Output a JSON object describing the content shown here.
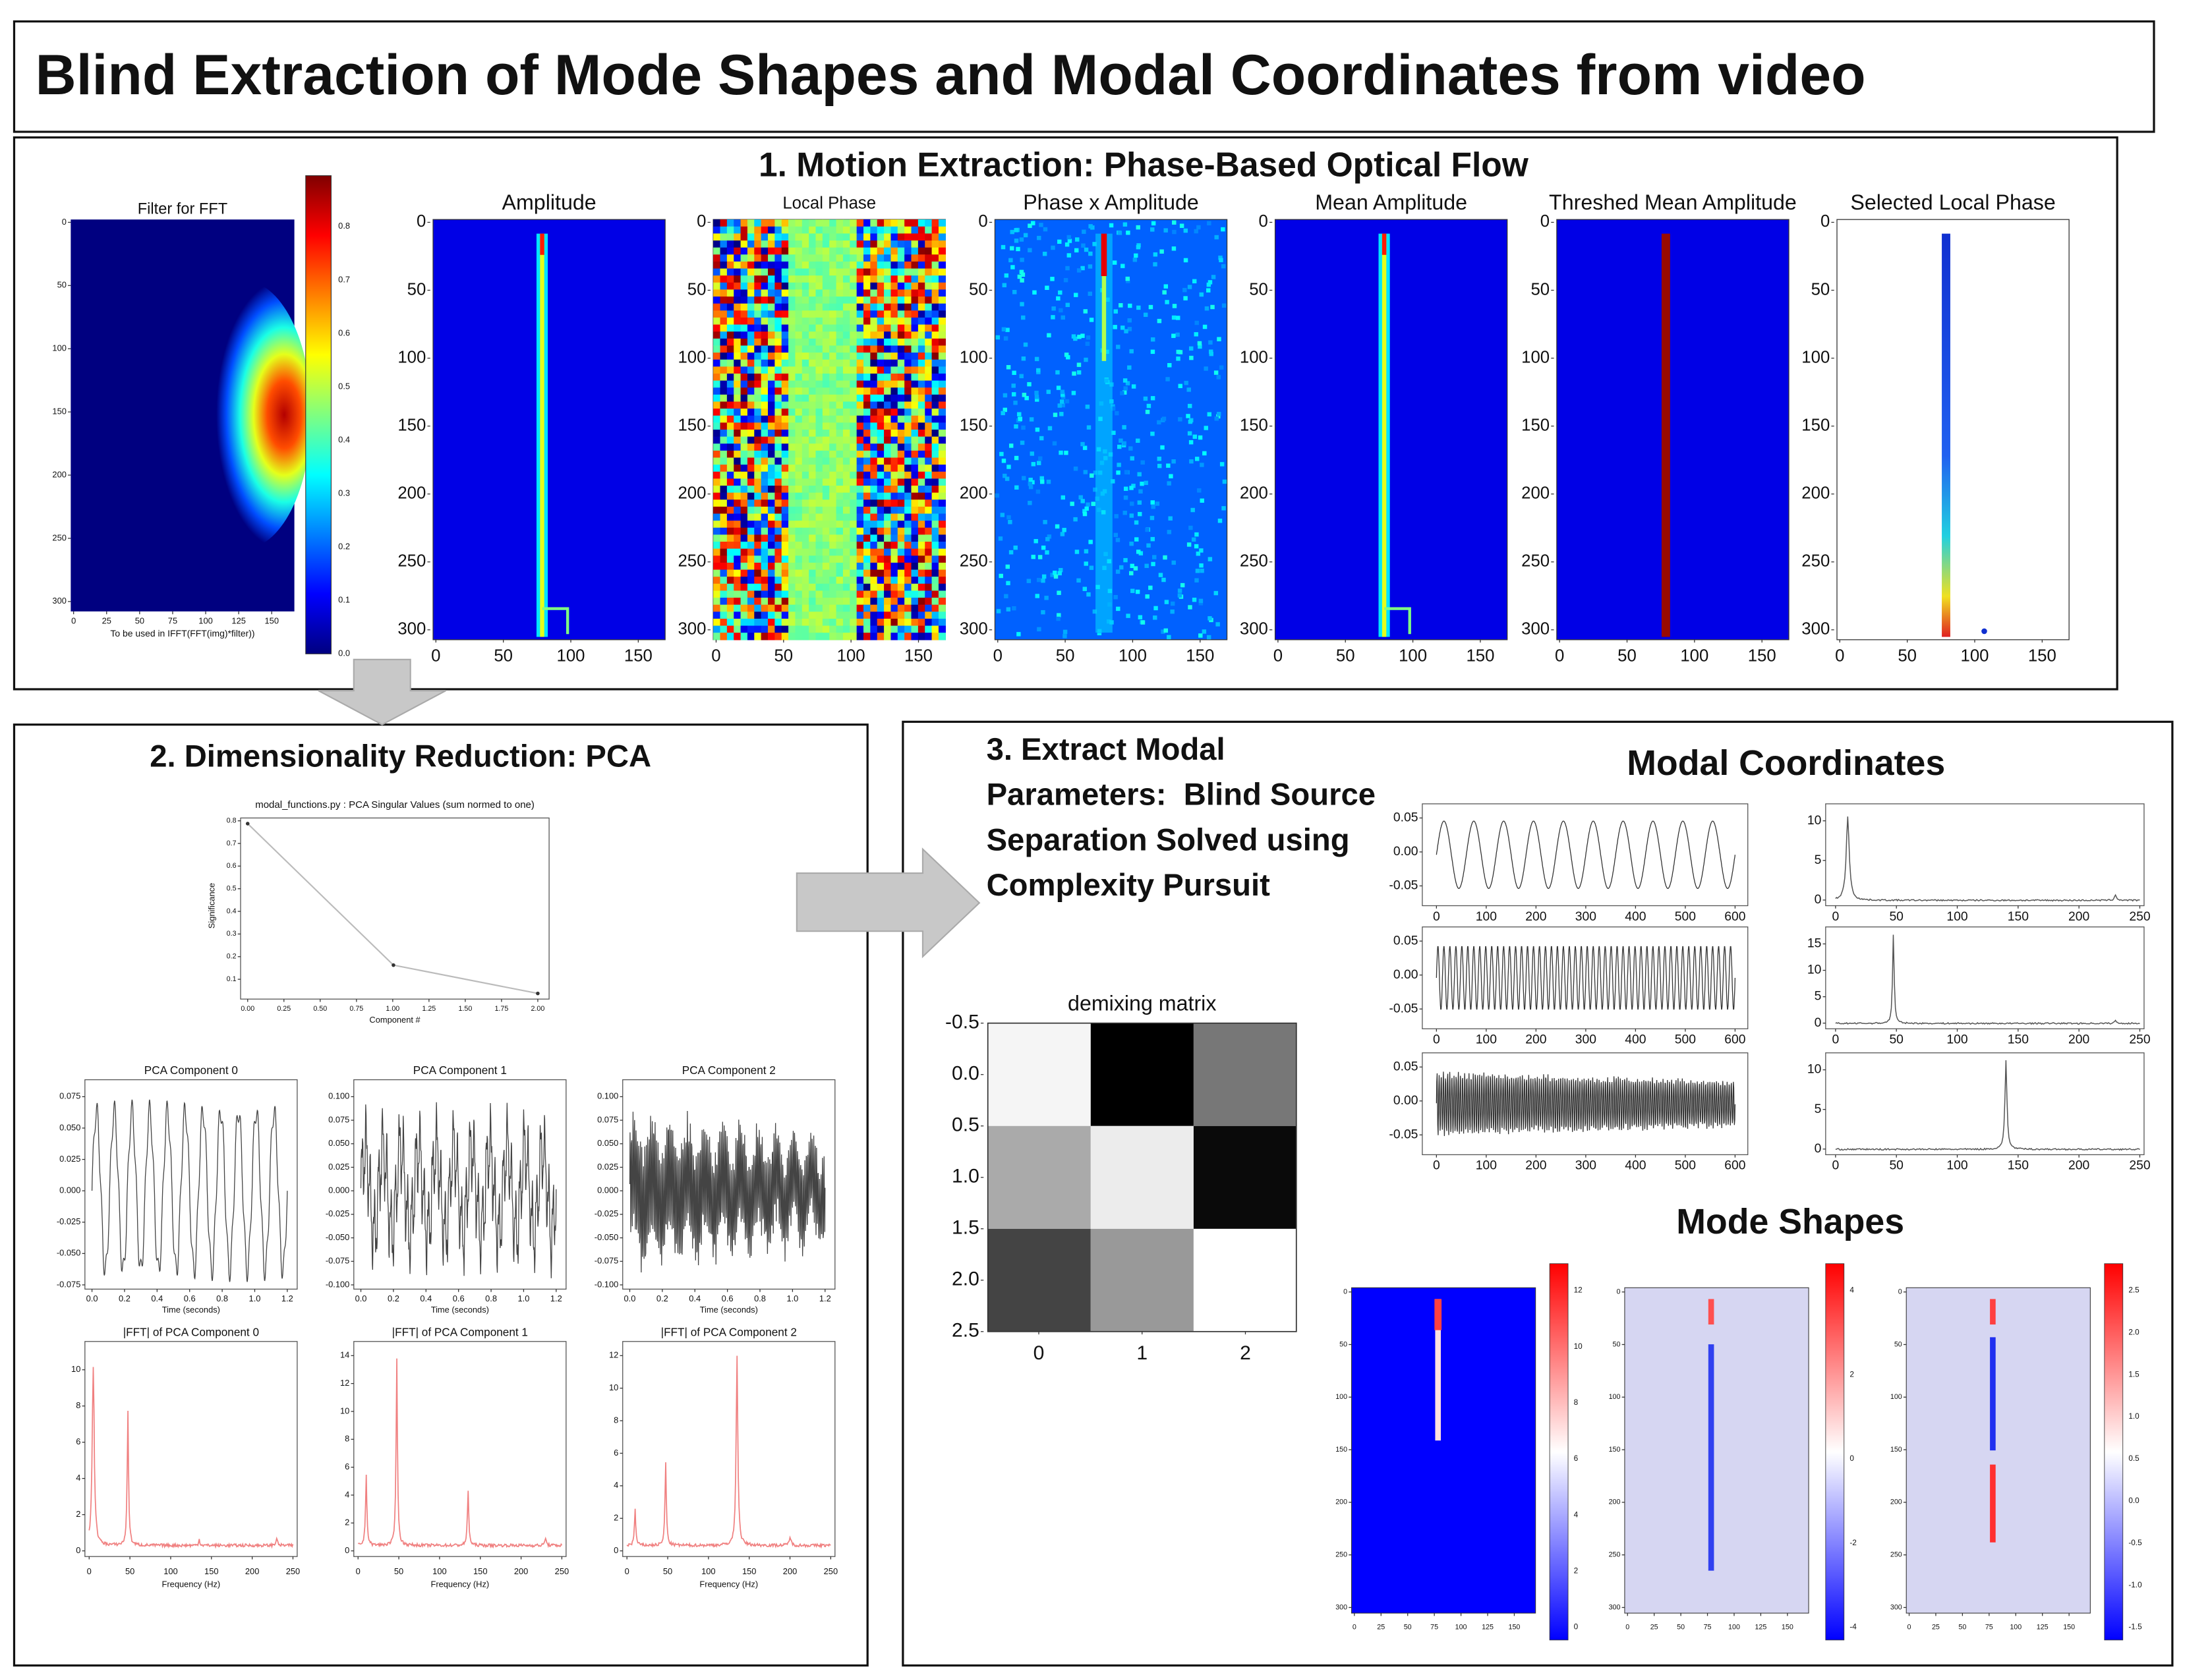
{
  "header": {
    "title": "Blind Extraction of Mode Shapes and Modal Coordinates from video"
  },
  "motion": {
    "title": "1. Motion Extraction: Phase-Based Optical Flow",
    "filter_panel": {
      "title": "Filter for FFT",
      "xlabel": "To be used in IFFT(FFT(img)*filter))",
      "xticks": [
        0,
        25,
        50,
        75,
        100,
        125,
        150
      ],
      "yticks": [
        0,
        50,
        100,
        150,
        200,
        250,
        300
      ],
      "colorbar_ticks": [
        "0.8",
        "0.7",
        "0.6",
        "0.5",
        "0.4",
        "0.3",
        "0.2",
        "0.1",
        "0.0"
      ]
    },
    "panels": [
      {
        "title": "Amplitude"
      },
      {
        "title": "Local Phase"
      },
      {
        "title": "Phase x Amplitude"
      },
      {
        "title": "Mean Amplitude"
      },
      {
        "title": "Threshed Mean Amplitude"
      },
      {
        "title": "Selected Local Phase"
      }
    ],
    "xticks": [
      0,
      50,
      100,
      150
    ],
    "yticks": [
      0,
      50,
      100,
      150,
      200,
      250,
      300
    ]
  },
  "pca": {
    "title": "2. Dimensionality Reduction: PCA",
    "singular_values": {
      "title": "modal_functions.py : PCA Singular Values (sum normed to one)",
      "xlabel": "Component #",
      "ylabel": "Significance",
      "xticks": [
        "0.00",
        "0.25",
        "0.50",
        "0.75",
        "1.00",
        "1.25",
        "1.50",
        "1.75",
        "2.00"
      ],
      "yticks": [
        "0.8",
        "0.7",
        "0.6",
        "0.5",
        "0.4",
        "0.3",
        "0.2",
        "0.1"
      ]
    },
    "components": [
      {
        "title": "PCA Component 0",
        "yticks": [
          "0.075",
          "0.050",
          "0.025",
          "0.000",
          "-0.025",
          "-0.050",
          "-0.075"
        ]
      },
      {
        "title": "PCA Component 1",
        "yticks": [
          "0.100",
          "0.075",
          "0.050",
          "0.025",
          "0.000",
          "-0.025",
          "-0.050",
          "-0.075",
          "-0.100"
        ]
      },
      {
        "title": "PCA Component 2",
        "yticks": [
          "0.100",
          "0.075",
          "0.050",
          "0.025",
          "0.000",
          "-0.025",
          "-0.050",
          "-0.075",
          "-0.100"
        ]
      }
    ],
    "time_xticks": [
      "0.0",
      "0.2",
      "0.4",
      "0.6",
      "0.8",
      "1.0",
      "1.2"
    ],
    "time_xlabel": "Time (seconds)",
    "ffts": [
      {
        "title": "|FFT| of PCA Component 0",
        "yticks": [
          10,
          8,
          6,
          4,
          2,
          0
        ]
      },
      {
        "title": "|FFT| of PCA Component 1",
        "yticks": [
          14,
          12,
          10,
          8,
          6,
          4,
          2,
          0
        ]
      },
      {
        "title": "|FFT| of PCA Component 2",
        "yticks": [
          12,
          10,
          8,
          6,
          4,
          2,
          0
        ]
      }
    ],
    "freq_xticks": [
      0,
      50,
      100,
      150,
      200,
      250
    ],
    "freq_xlabel": "Frequency (Hz)"
  },
  "modal": {
    "title_lines": [
      "3. Extract Modal",
      "Parameters:  Blind Source",
      "Separation Solved using",
      "Complexity Pursuit"
    ],
    "demixing": {
      "title": "demixing matrix",
      "yticks": [
        "-0.5",
        "0.0",
        "0.5",
        "1.0",
        "1.5",
        "2.0",
        "2.5"
      ],
      "xticks": [
        0,
        1,
        2
      ]
    },
    "coordinates_title": "Modal Coordinates",
    "time_yticks": [
      "0.05",
      "0.00",
      "-0.05"
    ],
    "time_xticks": [
      0,
      100,
      200,
      300,
      400,
      500,
      600
    ],
    "fft_yticks": [
      [
        10,
        5,
        0
      ],
      [
        15,
        10,
        5,
        0
      ],
      [
        10,
        5,
        0
      ]
    ],
    "fft_xticks": [
      0,
      50,
      100,
      150,
      200,
      250
    ],
    "shapes_title": "Mode Shapes",
    "shape_xticks": [
      0,
      25,
      50,
      75,
      100,
      125,
      150
    ],
    "shape_yticks": [
      0,
      50,
      100,
      150,
      200,
      250,
      300
    ],
    "colorbars": [
      [
        "12",
        "10",
        "8",
        "6",
        "4",
        "2",
        "0"
      ],
      [
        "4",
        "2",
        "0",
        "-2",
        "-4"
      ],
      [
        "2.5",
        "2.0",
        "1.5",
        "1.0",
        "0.5",
        "0.0",
        "-0.5",
        "-1.0",
        "-1.5"
      ]
    ]
  }
}
